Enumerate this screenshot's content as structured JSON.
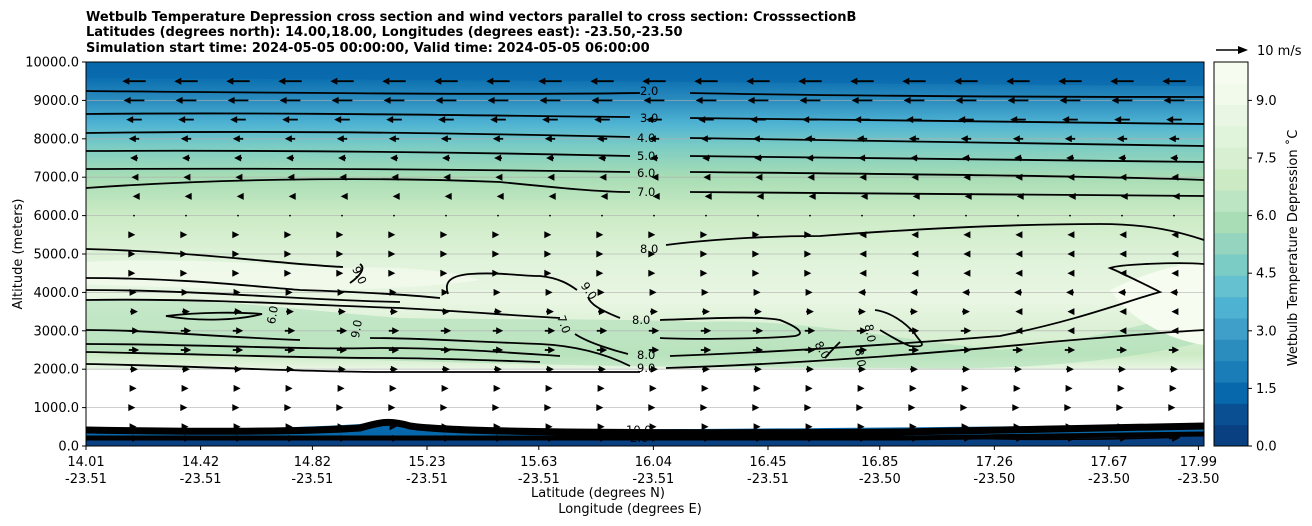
{
  "chart_data": {
    "type": "contour-cross-section",
    "title_lines": [
      "Wetbulb Temperature Depression cross section and wind vectors parallel to cross section: CrosssectionB",
      "Latitudes (degrees north): 14.00,18.00, Longitudes (degrees east): -23.50,-23.50",
      "Simulation start time: 2024-05-05 00:00:00, Valid time: 2024-05-05 06:00:00"
    ],
    "ylabel": "Altitude (meters)",
    "xlabel_lat": "Latitude (degrees N)",
    "xlabel_lon": "Longitude (degrees E)",
    "ylim": [
      0,
      10000
    ],
    "y_ticks": [
      {
        "value": 0,
        "label": "0.0"
      },
      {
        "value": 1000,
        "label": "1000.0"
      },
      {
        "value": 2000,
        "label": "2000.0"
      },
      {
        "value": 3000,
        "label": "3000.0"
      },
      {
        "value": 4000,
        "label": "4000.0"
      },
      {
        "value": 5000,
        "label": "5000.0"
      },
      {
        "value": 6000,
        "label": "6000.0"
      },
      {
        "value": 7000,
        "label": "7000.0"
      },
      {
        "value": 8000,
        "label": "8000.0"
      },
      {
        "value": 9000,
        "label": "9000.0"
      },
      {
        "value": 10000,
        "label": "10000.0"
      }
    ],
    "x_ticks": [
      {
        "frac": 0.0,
        "lat": "14.01",
        "lon": "-23.51"
      },
      {
        "frac": 0.1025,
        "lat": "14.42",
        "lon": "-23.51"
      },
      {
        "frac": 0.2025,
        "lat": "14.82",
        "lon": "-23.51"
      },
      {
        "frac": 0.305,
        "lat": "15.23",
        "lon": "-23.51"
      },
      {
        "frac": 0.405,
        "lat": "15.63",
        "lon": "-23.51"
      },
      {
        "frac": 0.5075,
        "lat": "16.04",
        "lon": "-23.51"
      },
      {
        "frac": 0.61,
        "lat": "16.45",
        "lon": "-23.51"
      },
      {
        "frac": 0.71,
        "lat": "16.85",
        "lon": "-23.50"
      },
      {
        "frac": 0.8125,
        "lat": "17.26",
        "lon": "-23.50"
      },
      {
        "frac": 0.915,
        "lat": "17.67",
        "lon": "-23.50"
      },
      {
        "frac": 0.995,
        "lat": "17.99",
        "lon": "-23.50"
      }
    ],
    "colorbar": {
      "label": "Wetbulb Temperature Depression ˚C",
      "min": 0,
      "max": 10,
      "tick_values": [
        0.0,
        1.5,
        3.0,
        4.5,
        6.0,
        7.5,
        9.0
      ],
      "tick_labels": [
        "0.0",
        "1.5",
        "3.0",
        "4.5",
        "6.0",
        "7.5",
        "9.0"
      ],
      "colors": [
        "#084081",
        "#0a4f91",
        "#0868ac",
        "#1b7db8",
        "#2b8cbe",
        "#3f9fc9",
        "#4eb3d3",
        "#65c1cf",
        "#7bccc4",
        "#95d5bf",
        "#a8ddb5",
        "#bce5c4",
        "#ccebc5",
        "#d8efd2",
        "#e0f3db",
        "#e9f6e3",
        "#f2faec",
        "#f7fcf0"
      ]
    },
    "quiver_key": {
      "label": "10 m/s",
      "speed": 10
    },
    "contour_labels": [
      {
        "text": "2.0",
        "level": 2.0
      },
      {
        "text": "3.0",
        "level": 3.0
      },
      {
        "text": "4.0",
        "level": 4.0
      },
      {
        "text": "5.0",
        "level": 5.0
      },
      {
        "text": "6.0",
        "level": 6.0
      },
      {
        "text": "7.0",
        "level": 7.0
      },
      {
        "text": "8.0",
        "level": 8.0
      },
      {
        "text": "8.0",
        "level": 8.0
      },
      {
        "text": "8.0",
        "level": 8.0
      },
      {
        "text": "9.0",
        "level": 9.0
      },
      {
        "text": "9.0",
        "level": 9.0
      },
      {
        "text": "9.0",
        "level": 9.0
      },
      {
        "text": "9.0",
        "level": 9.0
      },
      {
        "text": "7.0",
        "level": 7.0
      },
      {
        "text": "6.0",
        "level": 6.0
      },
      {
        "text": "8.0",
        "level": 8.0
      },
      {
        "text": "8.0",
        "level": 8.0
      },
      {
        "text": "8.0",
        "level": 8.0
      },
      {
        "text": "10.0",
        "level": 10.0
      },
      {
        "text": "2.0",
        "level": 2.0
      }
    ],
    "wind_levels": [
      {
        "alt": 9500,
        "u": -9
      },
      {
        "alt": 9000,
        "u": -8
      },
      {
        "alt": 8500,
        "u": -6
      },
      {
        "alt": 8000,
        "u": -4
      },
      {
        "alt": 7500,
        "u": -3
      },
      {
        "alt": 7000,
        "u": -2
      },
      {
        "alt": 6500,
        "u": -1
      },
      {
        "alt": 6000,
        "u": 0
      },
      {
        "alt": 5500,
        "u": 1
      },
      {
        "alt": 5000,
        "u": 1
      },
      {
        "alt": 4500,
        "u": 1
      },
      {
        "alt": 4000,
        "u": 2
      },
      {
        "alt": 3500,
        "u": 3
      },
      {
        "alt": 3000,
        "u": 4
      },
      {
        "alt": 2500,
        "u": 4
      },
      {
        "alt": 2000,
        "u": 3
      },
      {
        "alt": 1500,
        "u": 2
      },
      {
        "alt": 1000,
        "u": 1
      },
      {
        "alt": 500,
        "u": 2
      },
      {
        "alt": 200,
        "u": 4
      }
    ]
  }
}
